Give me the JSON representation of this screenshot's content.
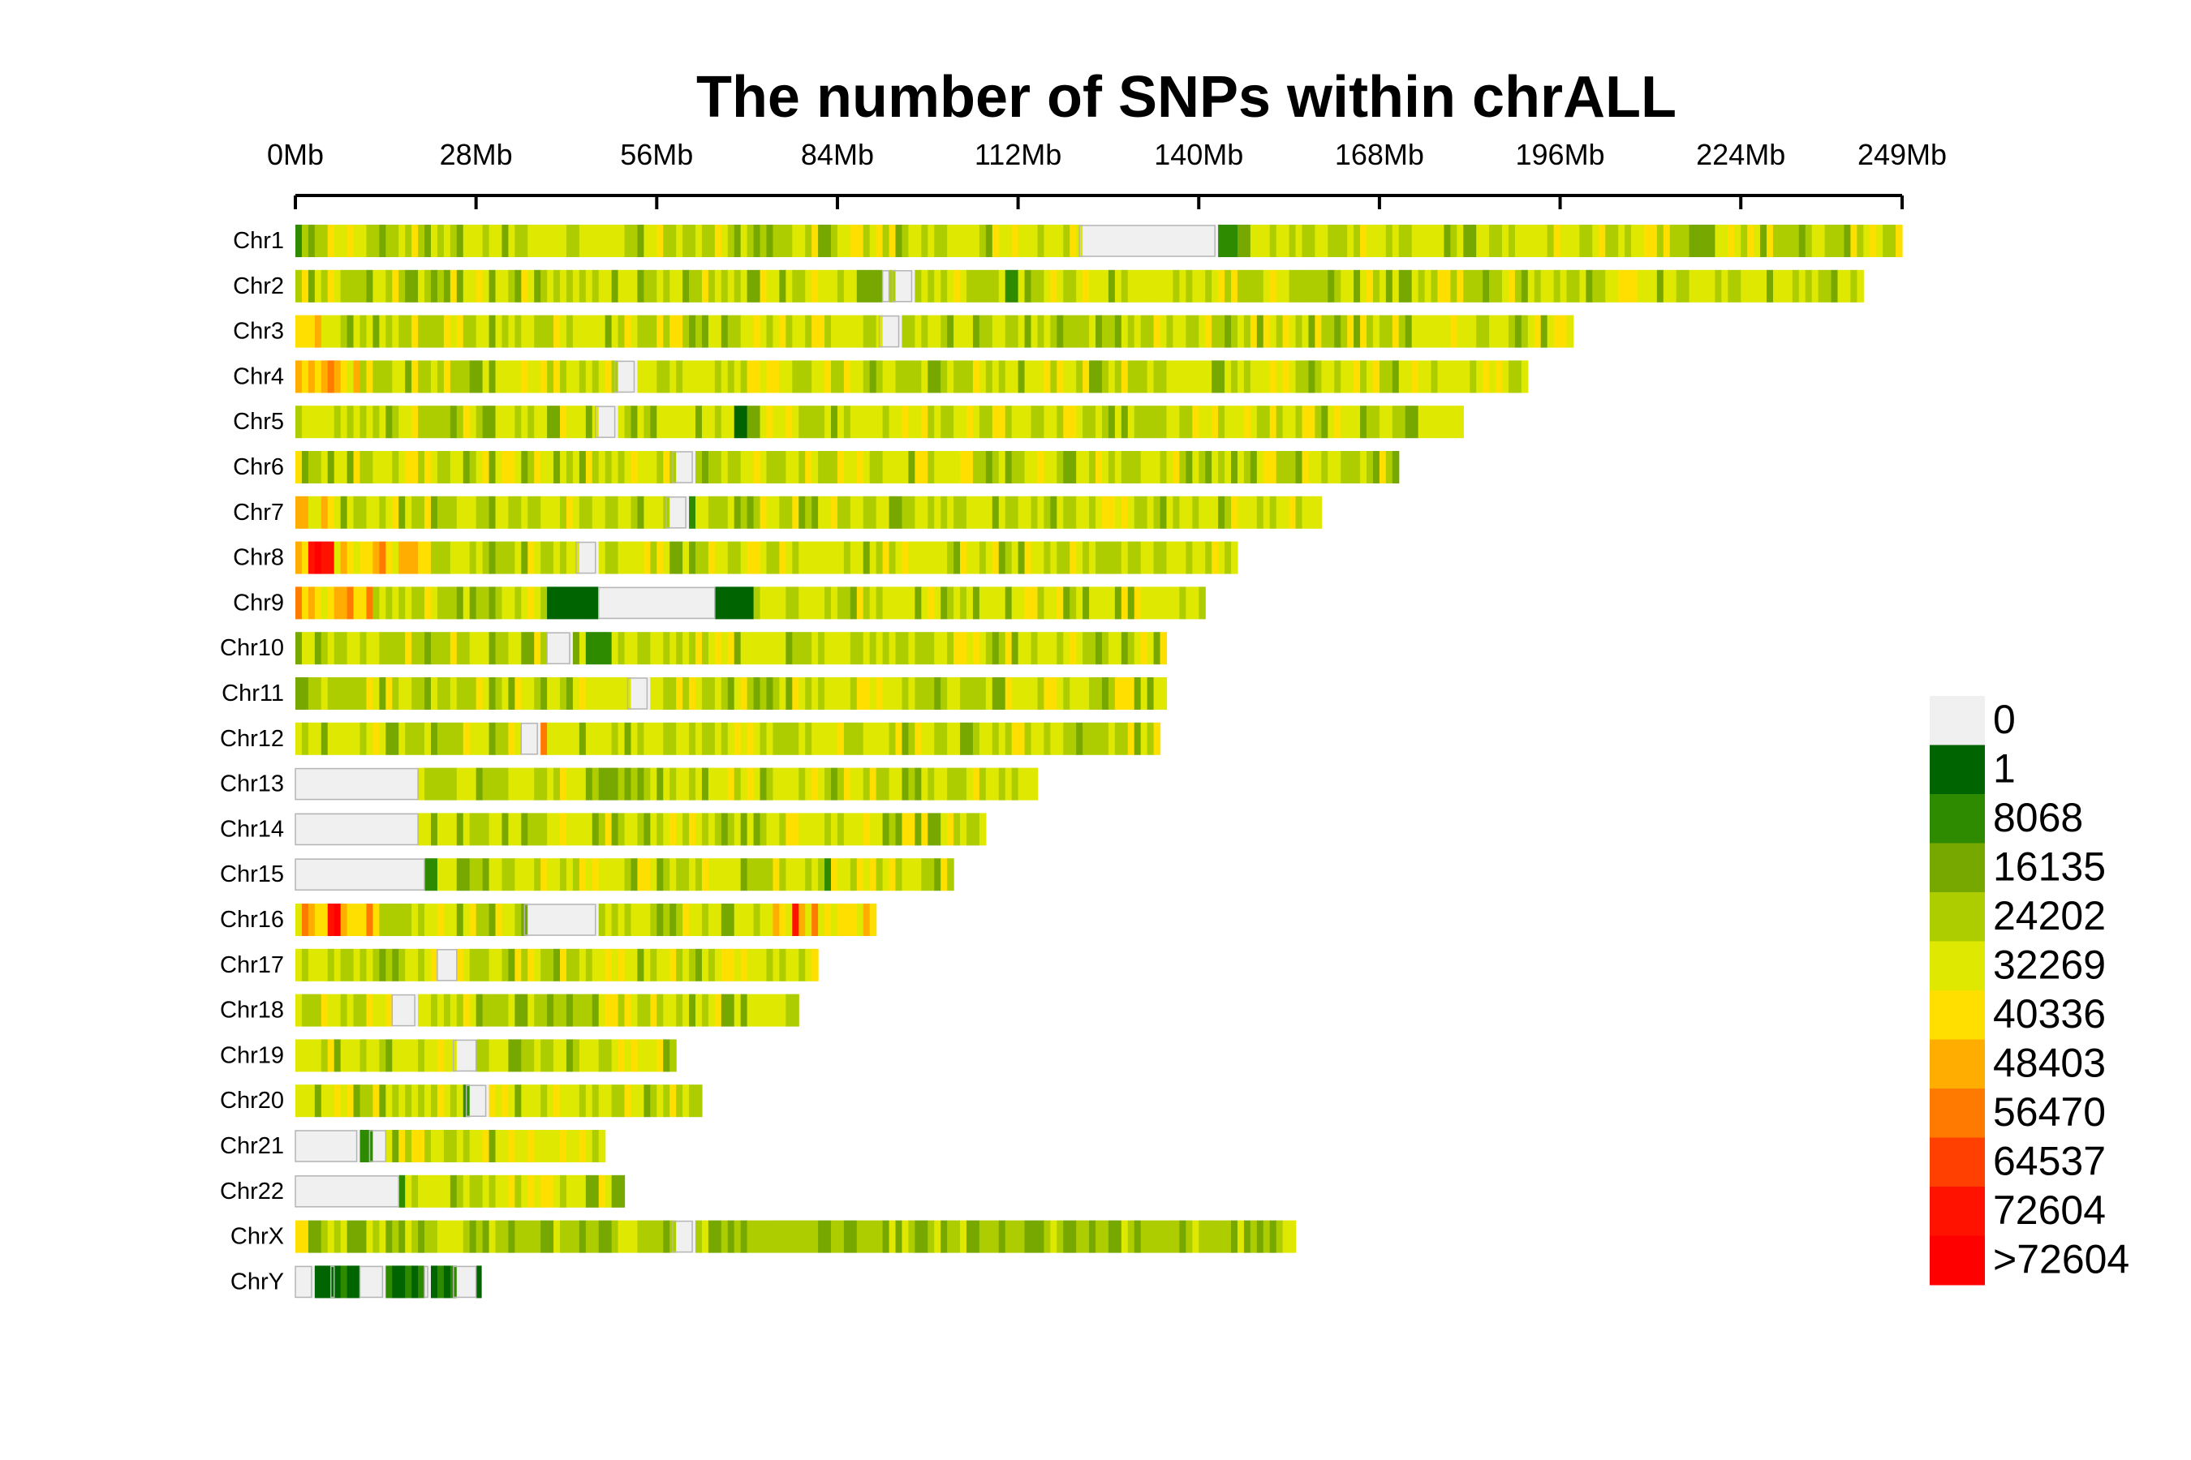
{
  "chart_data": {
    "type": "heatmap",
    "title": "The number of SNPs within chrALL",
    "x_axis": {
      "unit": "Mb",
      "range_mb": [
        0,
        249
      ],
      "ticks": [
        {
          "value": 0,
          "label": "0Mb"
        },
        {
          "value": 28,
          "label": "28Mb"
        },
        {
          "value": 56,
          "label": "56Mb"
        },
        {
          "value": 84,
          "label": "84Mb"
        },
        {
          "value": 112,
          "label": "112Mb"
        },
        {
          "value": 140,
          "label": "140Mb"
        },
        {
          "value": 168,
          "label": "168Mb"
        },
        {
          "value": 196,
          "label": "196Mb"
        },
        {
          "value": 224,
          "label": "224Mb"
        },
        {
          "value": 249,
          "label": "249Mb"
        }
      ]
    },
    "legend": {
      "placement": "right",
      "bins": [
        {
          "label": "0",
          "color": "#f0f0f0"
        },
        {
          "label": "1",
          "color": "#006400"
        },
        {
          "label": "8068",
          "color": "#2e8b00"
        },
        {
          "label": "16135",
          "color": "#76a800"
        },
        {
          "label": "24202",
          "color": "#adcd00"
        },
        {
          "label": "32269",
          "color": "#dfe800"
        },
        {
          "label": "40336",
          "color": "#ffdf00"
        },
        {
          "label": "48403",
          "color": "#ffad00"
        },
        {
          "label": "56470",
          "color": "#ff7a00"
        },
        {
          "label": "64537",
          "color": "#ff4000"
        },
        {
          "label": "72604",
          "color": "#ff1200"
        },
        {
          "label": ">72604",
          "color": "#ff0000"
        }
      ]
    },
    "chromosomes": [
      {
        "name": "Chr1",
        "length_mb": 249,
        "gaps": [
          [
            121.5,
            142.5
          ]
        ],
        "peaks": [
          [
            0,
            1,
            2
          ],
          [
            12.5,
            13.5,
            3
          ],
          [
            142.5,
            146,
            2
          ],
          [
            146,
            148,
            3
          ]
        ],
        "hot": []
      },
      {
        "name": "Chr2",
        "length_mb": 243,
        "gaps": [
          [
            91,
            92
          ],
          [
            92.5,
            95.5
          ]
        ],
        "peaks": [
          [
            86.5,
            90.5,
            3
          ],
          [
            110,
            111.5,
            2
          ]
        ],
        "hot": []
      },
      {
        "name": "Chr3",
        "length_mb": 198,
        "gaps": [
          [
            90.5,
            93.5
          ]
        ],
        "peaks": [
          [
            93.5,
            94,
            2
          ]
        ],
        "hot": [
          [
            0,
            5
          ]
        ]
      },
      {
        "name": "Chr4",
        "length_mb": 191,
        "gaps": [
          [
            49.5,
            52.5
          ]
        ],
        "peaks": [],
        "hot": [
          [
            0,
            10
          ]
        ]
      },
      {
        "name": "Chr5",
        "length_mb": 181,
        "gaps": [
          [
            46.5,
            49.5
          ]
        ],
        "peaks": [
          [
            68,
            70,
            1
          ]
        ],
        "hot": []
      },
      {
        "name": "Chr6",
        "length_mb": 171,
        "gaps": [
          [
            58.5,
            61.5
          ]
        ],
        "peaks": [],
        "hot": []
      },
      {
        "name": "Chr7",
        "length_mb": 159,
        "gaps": [
          [
            57.5,
            60.5
          ]
        ],
        "peaks": [
          [
            61,
            62,
            2
          ],
          [
            143,
            144,
            3
          ]
        ],
        "hot": [
          [
            0,
            6
          ]
        ]
      },
      {
        "name": "Chr8",
        "length_mb": 146,
        "gaps": [
          [
            43.5,
            46.5
          ]
        ],
        "peaks": [],
        "hot": [
          [
            0,
            20
          ]
        ],
        "red": [
          [
            2,
            6
          ]
        ]
      },
      {
        "name": "Chr9",
        "length_mb": 141,
        "gaps": [
          [
            47,
            65
          ]
        ],
        "peaks": [
          [
            38.5,
            47,
            1
          ],
          [
            65,
            71,
            1
          ]
        ],
        "hot": [
          [
            0,
            12
          ]
        ]
      },
      {
        "name": "Chr10",
        "length_mb": 135,
        "gaps": [
          [
            39,
            42.5
          ]
        ],
        "peaks": [
          [
            45,
            49,
            2
          ]
        ],
        "hot": []
      },
      {
        "name": "Chr11",
        "length_mb": 135,
        "gaps": [
          [
            51.5,
            54.5
          ]
        ],
        "peaks": [],
        "hot": []
      },
      {
        "name": "Chr12",
        "length_mb": 134,
        "gaps": [
          [
            35,
            37.5
          ]
        ],
        "peaks": [],
        "hot": [
          [
            37.5,
            38.5
          ]
        ]
      },
      {
        "name": "Chr13",
        "length_mb": 115,
        "gaps": [
          [
            0,
            19
          ]
        ],
        "peaks": [],
        "hot": []
      },
      {
        "name": "Chr14",
        "length_mb": 107,
        "gaps": [
          [
            0,
            19
          ]
        ],
        "peaks": [],
        "hot": []
      },
      {
        "name": "Chr15",
        "length_mb": 102,
        "gaps": [
          [
            0,
            20
          ]
        ],
        "peaks": [
          [
            20,
            21.5,
            2
          ],
          [
            82,
            83,
            2
          ]
        ],
        "hot": []
      },
      {
        "name": "Chr16",
        "length_mb": 90,
        "gaps": [
          [
            35.5,
            46.5
          ]
        ],
        "peaks": [],
        "hot": [
          [
            0,
            12
          ],
          [
            74,
            90
          ]
        ],
        "red": [
          [
            5,
            7
          ],
          [
            77,
            78
          ]
        ]
      },
      {
        "name": "Chr17",
        "length_mb": 81,
        "gaps": [
          [
            22,
            25
          ]
        ],
        "peaks": [],
        "hot": []
      },
      {
        "name": "Chr18",
        "length_mb": 78,
        "gaps": [
          [
            15,
            18.5
          ]
        ],
        "peaks": [],
        "hot": []
      },
      {
        "name": "Chr19",
        "length_mb": 59,
        "gaps": [
          [
            24.5,
            28
          ]
        ],
        "peaks": [],
        "hot": []
      },
      {
        "name": "Chr20",
        "length_mb": 63,
        "gaps": [
          [
            26.5,
            29.5
          ]
        ],
        "peaks": [
          [
            25.5,
            26.5,
            2
          ]
        ],
        "hot": []
      },
      {
        "name": "Chr21",
        "length_mb": 48,
        "gaps": [
          [
            0,
            9.5
          ],
          [
            11.5,
            14
          ]
        ],
        "peaks": [
          [
            9.5,
            11.5,
            2
          ]
        ],
        "hot": []
      },
      {
        "name": "Chr22",
        "length_mb": 51,
        "gaps": [
          [
            0,
            16
          ]
        ],
        "peaks": [
          [
            16,
            16.7,
            2
          ]
        ],
        "hot": []
      },
      {
        "name": "ChrX",
        "length_mb": 155,
        "gaps": [
          [
            58.5,
            61.5
          ]
        ],
        "peaks": [],
        "hot": [
          [
            0,
            2
          ]
        ]
      },
      {
        "name": "ChrY",
        "length_mb": 28.8,
        "gaps": [
          [
            0,
            2.5
          ],
          [
            5.5,
            6
          ],
          [
            10,
            13.5
          ],
          [
            20,
            20.5
          ],
          [
            24.5,
            28
          ]
        ]
      }
    ]
  }
}
